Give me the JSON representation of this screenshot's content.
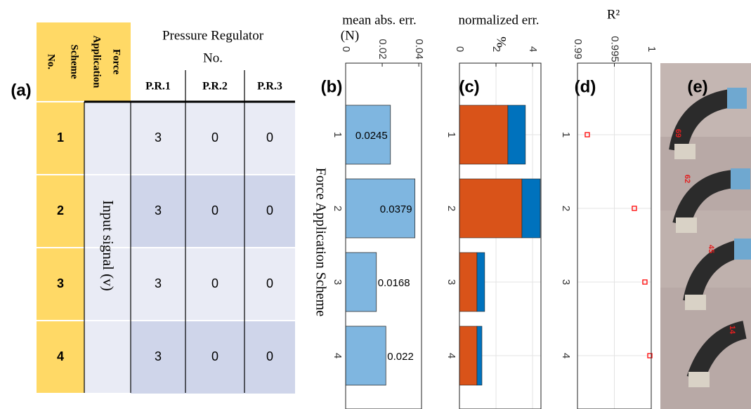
{
  "panel_labels": [
    "(a)",
    "(b)",
    "(c)",
    "(d)",
    "(e)"
  ],
  "table": {
    "scheme_header": [
      "Force",
      "Application",
      "Scheme",
      "No."
    ],
    "regulator_header": [
      "Pressure Regulator",
      "No."
    ],
    "columns": [
      "P.R.1",
      "P.R.2",
      "P.R.3"
    ],
    "signal_label": "Input signal (v)",
    "rows": [
      [
        "1",
        3,
        0,
        0
      ],
      [
        "2",
        3,
        0,
        0
      ],
      [
        "3",
        3,
        0,
        0
      ],
      [
        "4",
        3,
        0,
        0
      ]
    ]
  },
  "chart_data": [
    {
      "type": "bar",
      "xlabel": [
        "mean abs. err.",
        "(N)"
      ],
      "ylabel": "Force Application Scheme",
      "categories": [
        "1",
        "2",
        "3",
        "4"
      ],
      "values": [
        0.0245,
        0.0379,
        0.0168,
        0.022
      ],
      "color": "#7fb6e0",
      "xlim": [
        0,
        0.0415
      ],
      "xticks": [
        0,
        0.02,
        0.04
      ],
      "grid": false,
      "data_labels": true
    },
    {
      "type": "stacked-bar",
      "xlabel": [
        "normalized err.",
        "%"
      ],
      "categories": [
        "1",
        "2",
        "3",
        "4"
      ],
      "series": [
        {
          "color": "#d95319",
          "values": [
            2.65,
            3.42,
            0.96,
            0.96
          ]
        },
        {
          "color": "#0072bd",
          "values": [
            0.96,
            1.0,
            0.42,
            0.27
          ]
        }
      ],
      "xlim": [
        0,
        4.46
      ],
      "xticks": [
        0,
        2,
        4
      ],
      "grid": true
    },
    {
      "type": "scatter",
      "xlabel": [
        "R²"
      ],
      "categories": [
        "1",
        "2",
        "3",
        "4"
      ],
      "values": [
        0.99133,
        0.99771,
        0.99914,
        0.99981
      ],
      "color": "#ff0000",
      "xlim": [
        0.99,
        1
      ],
      "xticks": [
        0.99,
        0.995,
        1
      ],
      "grid": true
    }
  ],
  "photo_labels": [
    "69",
    "62",
    "45",
    "14"
  ]
}
